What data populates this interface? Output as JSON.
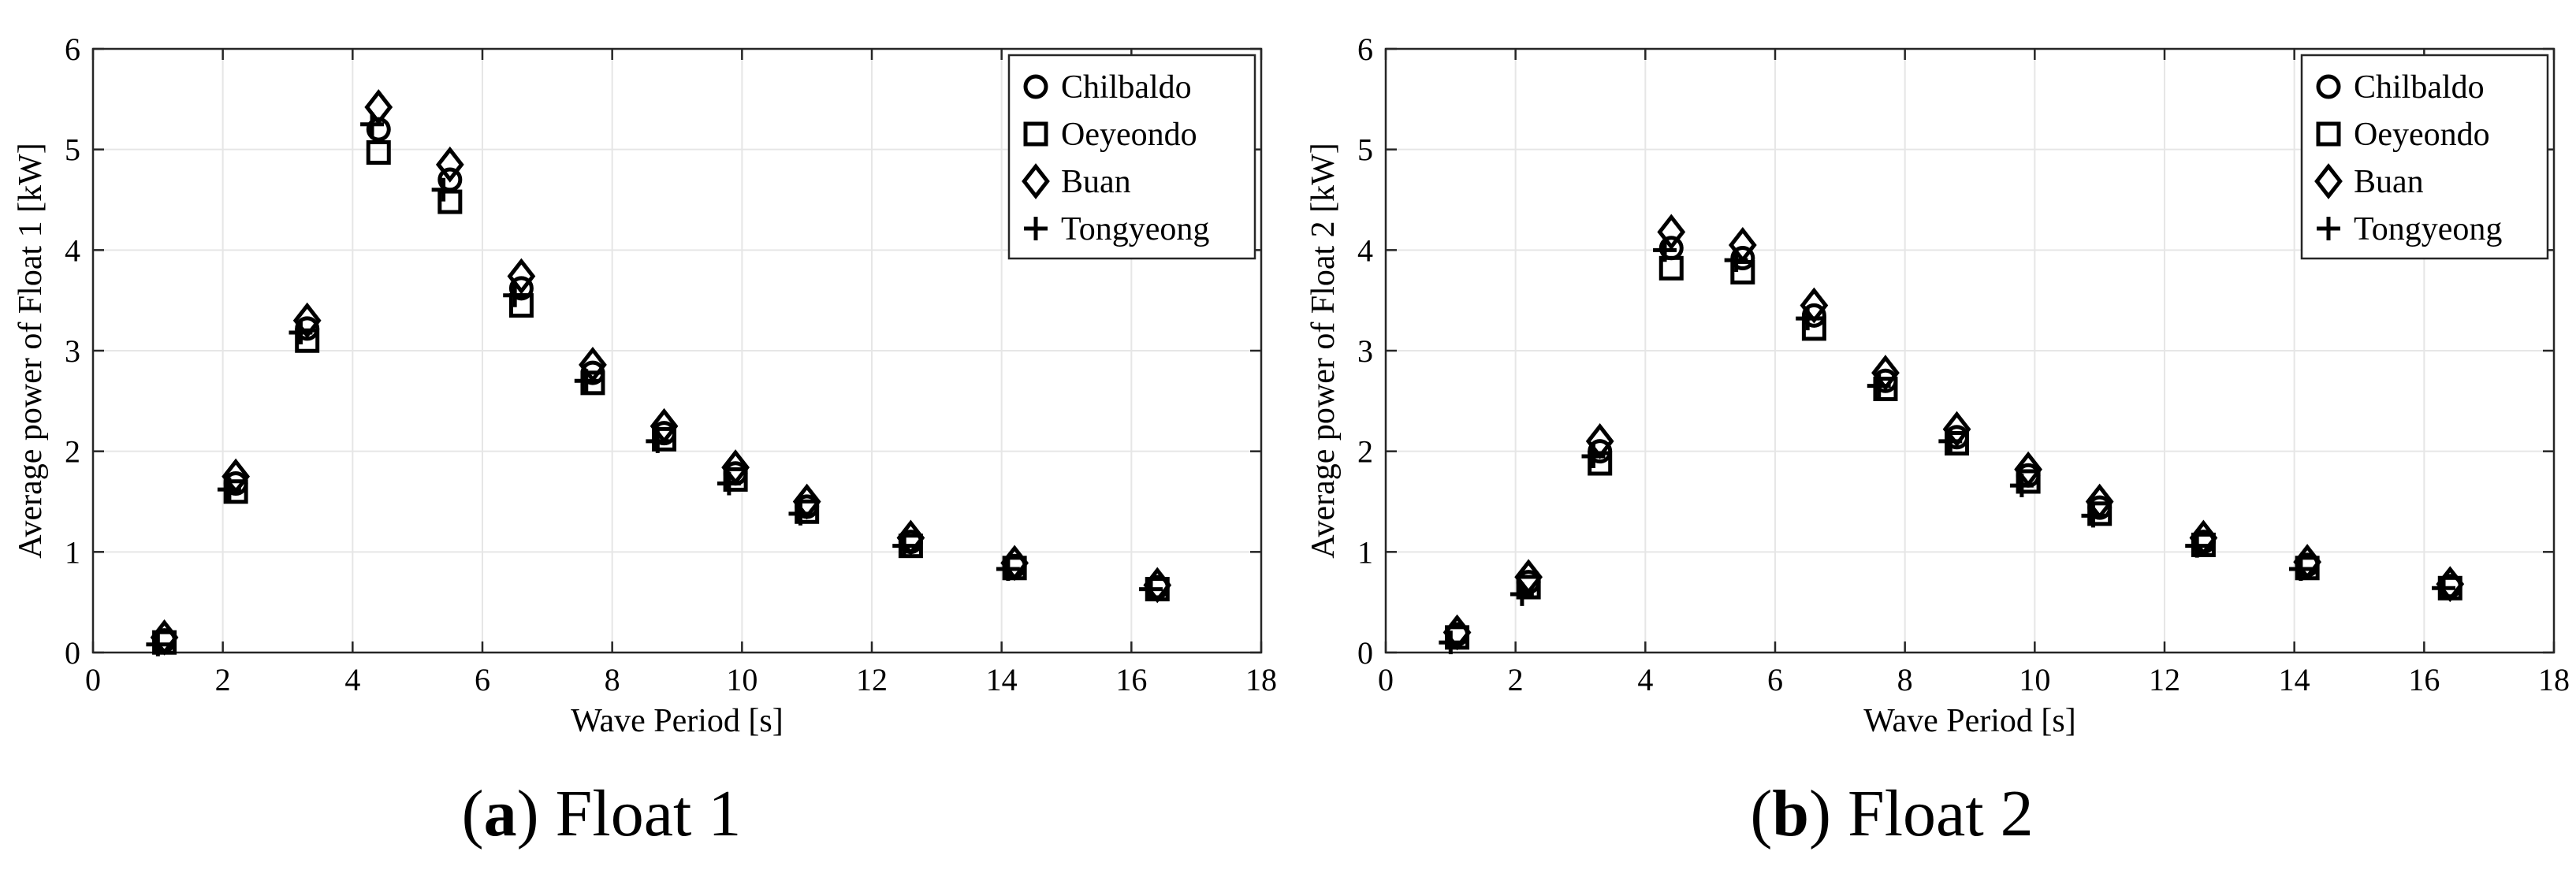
{
  "chart_data": [
    {
      "type": "scatter",
      "title": "",
      "caption_label": "a",
      "caption_text": "Float 1",
      "xlabel": "Wave Period [s]",
      "ylabel": "Average power of Float 1 [kW]",
      "xlim": [
        0,
        18
      ],
      "ylim": [
        0,
        6
      ],
      "xticks": [
        "0",
        "2",
        "4",
        "6",
        "8",
        "10",
        "12",
        "14",
        "16",
        "18"
      ],
      "yticks": [
        "0",
        "1",
        "2",
        "3",
        "4",
        "5",
        "6"
      ],
      "grid": true,
      "legend_position": "top-right",
      "series": [
        {
          "name": "Chilbaldo",
          "marker": "circle",
          "x": [
            1.1,
            2.2,
            3.3,
            4.4,
            5.5,
            6.6,
            7.7,
            8.8,
            9.9,
            11.0,
            12.6,
            14.2,
            16.4
          ],
          "y": [
            0.12,
            1.68,
            3.22,
            5.2,
            4.7,
            3.62,
            2.78,
            2.18,
            1.78,
            1.45,
            1.1,
            0.86,
            0.65
          ]
        },
        {
          "name": "Oeyeondo",
          "marker": "square",
          "x": [
            1.1,
            2.2,
            3.3,
            4.4,
            5.5,
            6.6,
            7.7,
            8.8,
            9.9,
            11.0,
            12.6,
            14.2,
            16.4
          ],
          "y": [
            0.1,
            1.6,
            3.1,
            4.97,
            4.48,
            3.45,
            2.68,
            2.12,
            1.72,
            1.4,
            1.06,
            0.84,
            0.63
          ]
        },
        {
          "name": "Buan",
          "marker": "diamond",
          "x": [
            1.1,
            2.2,
            3.3,
            4.4,
            5.5,
            6.6,
            7.7,
            8.8,
            9.9,
            11.0,
            12.6,
            14.2,
            16.4
          ],
          "y": [
            0.15,
            1.75,
            3.3,
            5.42,
            4.85,
            3.74,
            2.86,
            2.25,
            1.84,
            1.5,
            1.14,
            0.89,
            0.67
          ]
        },
        {
          "name": "Tongyeong",
          "marker": "plus",
          "x": [
            1.0,
            2.1,
            3.2,
            4.3,
            5.4,
            6.5,
            7.6,
            8.7,
            9.8,
            10.9,
            12.5,
            14.1,
            16.3
          ],
          "y": [
            0.08,
            1.62,
            3.18,
            5.25,
            4.6,
            3.55,
            2.7,
            2.1,
            1.68,
            1.38,
            1.06,
            0.83,
            0.63
          ]
        }
      ]
    },
    {
      "type": "scatter",
      "title": "",
      "caption_label": "b",
      "caption_text": "Float 2",
      "xlabel": "Wave Period [s]",
      "ylabel": "Average power of Float 2 [kW]",
      "xlim": [
        0,
        18
      ],
      "ylim": [
        0,
        6
      ],
      "xticks": [
        "0",
        "2",
        "4",
        "6",
        "8",
        "10",
        "12",
        "14",
        "16",
        "18"
      ],
      "yticks": [
        "0",
        "1",
        "2",
        "3",
        "4",
        "5",
        "6"
      ],
      "grid": true,
      "legend_position": "top-right",
      "series": [
        {
          "name": "Chilbaldo",
          "marker": "circle",
          "x": [
            1.1,
            2.2,
            3.3,
            4.4,
            5.5,
            6.6,
            7.7,
            8.8,
            9.9,
            11.0,
            12.6,
            14.2,
            16.4
          ],
          "y": [
            0.18,
            0.7,
            2.0,
            4.02,
            3.92,
            3.35,
            2.7,
            2.14,
            1.76,
            1.44,
            1.1,
            0.87,
            0.66
          ]
        },
        {
          "name": "Oeyeondo",
          "marker": "square",
          "x": [
            1.1,
            2.2,
            3.3,
            4.4,
            5.5,
            6.6,
            7.7,
            8.8,
            9.9,
            11.0,
            12.6,
            14.2,
            16.4
          ],
          "y": [
            0.15,
            0.65,
            1.88,
            3.82,
            3.78,
            3.22,
            2.62,
            2.08,
            1.7,
            1.38,
            1.07,
            0.84,
            0.64
          ]
        },
        {
          "name": "Buan",
          "marker": "diamond",
          "x": [
            1.1,
            2.2,
            3.3,
            4.4,
            5.5,
            6.6,
            7.7,
            8.8,
            9.9,
            11.0,
            12.6,
            14.2,
            16.4
          ],
          "y": [
            0.2,
            0.75,
            2.1,
            4.18,
            4.05,
            3.45,
            2.78,
            2.22,
            1.82,
            1.5,
            1.14,
            0.9,
            0.68
          ]
        },
        {
          "name": "Tongyeong",
          "marker": "plus",
          "x": [
            1.0,
            2.1,
            3.2,
            4.3,
            5.4,
            6.5,
            7.6,
            8.7,
            9.8,
            10.9,
            12.5,
            14.1,
            16.3
          ],
          "y": [
            0.1,
            0.58,
            1.95,
            4.0,
            3.9,
            3.32,
            2.65,
            2.1,
            1.66,
            1.36,
            1.06,
            0.83,
            0.64
          ]
        }
      ]
    }
  ]
}
